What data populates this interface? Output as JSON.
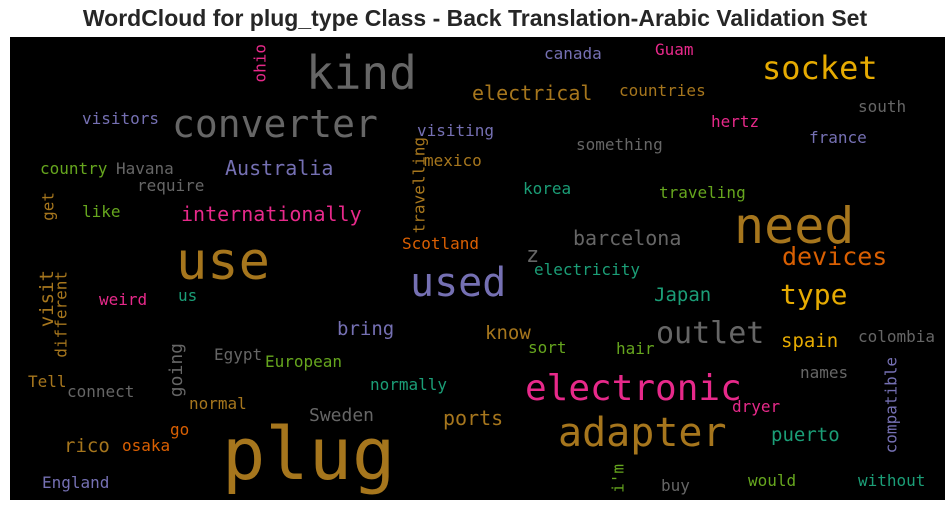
{
  "title": "WordCloud for plug_type Class - Back Translation-Arabic Validation Set",
  "words": [
    {
      "text": "plug",
      "color": "#a6761d"
    },
    {
      "text": "kind",
      "color": "#666666"
    },
    {
      "text": "use",
      "color": "#a6761d"
    },
    {
      "text": "need",
      "color": "#a6761d"
    },
    {
      "text": "converter",
      "color": "#666666"
    },
    {
      "text": "used",
      "color": "#7570b3"
    },
    {
      "text": "electronic",
      "color": "#e7298a"
    },
    {
      "text": "adapter",
      "color": "#a6761d"
    },
    {
      "text": "socket",
      "color": "#e6ab02"
    },
    {
      "text": "outlet",
      "color": "#666666"
    },
    {
      "text": "type",
      "color": "#e6ab02"
    },
    {
      "text": "devices",
      "color": "#d95f02"
    },
    {
      "text": "internationally",
      "color": "#e7298a"
    },
    {
      "text": "Australia",
      "color": "#7570b3"
    },
    {
      "text": "electrical",
      "color": "#a6761d"
    },
    {
      "text": "barcelona",
      "color": "#666666"
    },
    {
      "text": "ports",
      "color": "#a6761d"
    },
    {
      "text": "Sweden",
      "color": "#666666"
    },
    {
      "text": "bring",
      "color": "#7570b3"
    },
    {
      "text": "know",
      "color": "#a6761d"
    },
    {
      "text": "spain",
      "color": "#e6ab02"
    },
    {
      "text": "puerto",
      "color": "#1b9e77"
    },
    {
      "text": "Japan",
      "color": "#1b9e77"
    },
    {
      "text": "rico",
      "color": "#a6761d"
    },
    {
      "text": "z",
      "color": "#666666"
    },
    {
      "text": "travelling",
      "color": "#a6761d"
    },
    {
      "text": "visit",
      "color": "#a6761d"
    },
    {
      "text": "going",
      "color": "#666666"
    },
    {
      "text": "visitors",
      "color": "#7570b3"
    },
    {
      "text": "visiting",
      "color": "#7570b3"
    },
    {
      "text": "something",
      "color": "#666666"
    },
    {
      "text": "countries",
      "color": "#a6761d"
    },
    {
      "text": "hertz",
      "color": "#e7298a"
    },
    {
      "text": "france",
      "color": "#7570b3"
    },
    {
      "text": "south",
      "color": "#666666"
    },
    {
      "text": "canada",
      "color": "#7570b3"
    },
    {
      "text": "Guam",
      "color": "#e7298a"
    },
    {
      "text": "ohio",
      "color": "#e7298a"
    },
    {
      "text": "country",
      "color": "#66a61e"
    },
    {
      "text": "Havana",
      "color": "#666666"
    },
    {
      "text": "require",
      "color": "#666666"
    },
    {
      "text": "mexico",
      "color": "#a6761d"
    },
    {
      "text": "korea",
      "color": "#1b9e77"
    },
    {
      "text": "traveling",
      "color": "#66a61e"
    },
    {
      "text": "like",
      "color": "#66a61e"
    },
    {
      "text": "get",
      "color": "#a6761d"
    },
    {
      "text": "Scotland",
      "color": "#d95f02"
    },
    {
      "text": "electricity",
      "color": "#1b9e77"
    },
    {
      "text": "us",
      "color": "#1b9e77"
    },
    {
      "text": "weird",
      "color": "#e7298a"
    },
    {
      "text": "different",
      "color": "#a6761d"
    },
    {
      "text": "Egypt",
      "color": "#666666"
    },
    {
      "text": "European",
      "color": "#66a61e"
    },
    {
      "text": "sort",
      "color": "#66a61e"
    },
    {
      "text": "hair",
      "color": "#66a61e"
    },
    {
      "text": "colombia",
      "color": "#666666"
    },
    {
      "text": "names",
      "color": "#666666"
    },
    {
      "text": "compatible",
      "color": "#7570b3"
    },
    {
      "text": "Tell",
      "color": "#a6761d"
    },
    {
      "text": "connect",
      "color": "#666666"
    },
    {
      "text": "normal",
      "color": "#a6761d"
    },
    {
      "text": "normally",
      "color": "#1b9e77"
    },
    {
      "text": "dryer",
      "color": "#e7298a"
    },
    {
      "text": "go",
      "color": "#d95f02"
    },
    {
      "text": "osaka",
      "color": "#d95f02"
    },
    {
      "text": "England",
      "color": "#7570b3"
    },
    {
      "text": "i'm",
      "color": "#66a61e"
    },
    {
      "text": "buy",
      "color": "#666666"
    },
    {
      "text": "would",
      "color": "#66a61e"
    },
    {
      "text": "without",
      "color": "#1b9e77"
    }
  ]
}
